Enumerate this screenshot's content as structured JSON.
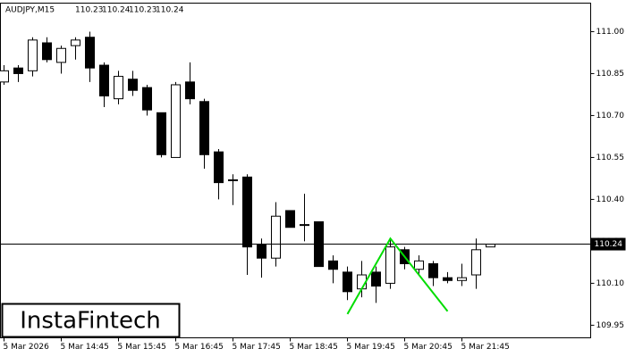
{
  "chart_data": {
    "type": "candlestick",
    "title": "AUDJPY,M15",
    "watermark": "InstaFintech",
    "categories": [
      "5 Mar 2026",
      null,
      null,
      null,
      "5 Mar 14:45",
      null,
      null,
      null,
      "5 Mar 15:45",
      null,
      null,
      null,
      "5 Mar 16:45",
      null,
      null,
      null,
      "5 Mar 17:45",
      null,
      null,
      null,
      "5 Mar 18:45",
      null,
      null,
      null,
      "5 Mar 19:45",
      null,
      null,
      null,
      "5 Mar 20:45",
      null,
      null,
      null,
      "5 Mar 21:45",
      null,
      null
    ],
    "open": [
      110.82,
      110.87,
      110.86,
      110.96,
      110.89,
      110.95,
      110.98,
      110.88,
      110.76,
      110.83,
      110.8,
      110.71,
      110.55,
      110.82,
      110.75,
      110.57,
      110.47,
      110.48,
      110.24,
      110.19,
      110.36,
      110.31,
      110.32,
      110.18,
      110.14,
      110.08,
      110.14,
      110.1,
      110.22,
      110.15,
      110.17,
      110.12,
      110.11,
      110.13,
      110.23
    ],
    "high": [
      110.88,
      110.88,
      110.98,
      110.98,
      110.95,
      110.98,
      111.0,
      110.89,
      110.86,
      110.86,
      110.81,
      110.71,
      110.82,
      110.89,
      110.76,
      110.58,
      110.49,
      110.49,
      110.26,
      110.39,
      110.36,
      110.42,
      110.32,
      110.2,
      110.16,
      110.18,
      110.16,
      110.26,
      110.23,
      110.2,
      110.18,
      110.14,
      110.17,
      110.26,
      110.24
    ],
    "low": [
      110.81,
      110.82,
      110.84,
      110.89,
      110.85,
      110.9,
      110.82,
      110.73,
      110.74,
      110.77,
      110.7,
      110.55,
      110.55,
      110.74,
      110.51,
      110.4,
      110.38,
      110.13,
      110.12,
      110.16,
      110.3,
      110.25,
      110.16,
      110.1,
      110.04,
      110.05,
      110.03,
      110.08,
      110.15,
      110.13,
      110.09,
      110.1,
      110.09,
      110.08,
      110.23
    ],
    "close": [
      110.86,
      110.85,
      110.97,
      110.9,
      110.94,
      110.97,
      110.87,
      110.77,
      110.84,
      110.79,
      110.72,
      110.56,
      110.81,
      110.76,
      110.56,
      110.46,
      110.47,
      110.23,
      110.19,
      110.34,
      110.3,
      110.31,
      110.16,
      110.15,
      110.07,
      110.13,
      110.09,
      110.23,
      110.17,
      110.18,
      110.12,
      110.11,
      110.12,
      110.22,
      110.24
    ],
    "up_color": "#ffffff",
    "down_color": "#000000",
    "price_line": 110.24,
    "pattern": {
      "color": "#00dd00",
      "x": [
        24,
        27,
        31
      ],
      "values": [
        109.99,
        110.26,
        110.0
      ]
    },
    "ylim": [
      109.905,
      111.102
    ],
    "yticks": [
      {
        "value": 109.95,
        "label": "109.95"
      },
      {
        "value": 110.1,
        "label": "110.10"
      },
      {
        "value": 110.25,
        "label": "110.25"
      },
      {
        "value": 110.4,
        "label": "110.40"
      },
      {
        "value": 110.55,
        "label": "110.55"
      },
      {
        "value": 110.7,
        "label": "110.70"
      },
      {
        "value": 110.85,
        "label": "110.85"
      },
      {
        "value": 111,
        "label": "111.00"
      }
    ]
  }
}
